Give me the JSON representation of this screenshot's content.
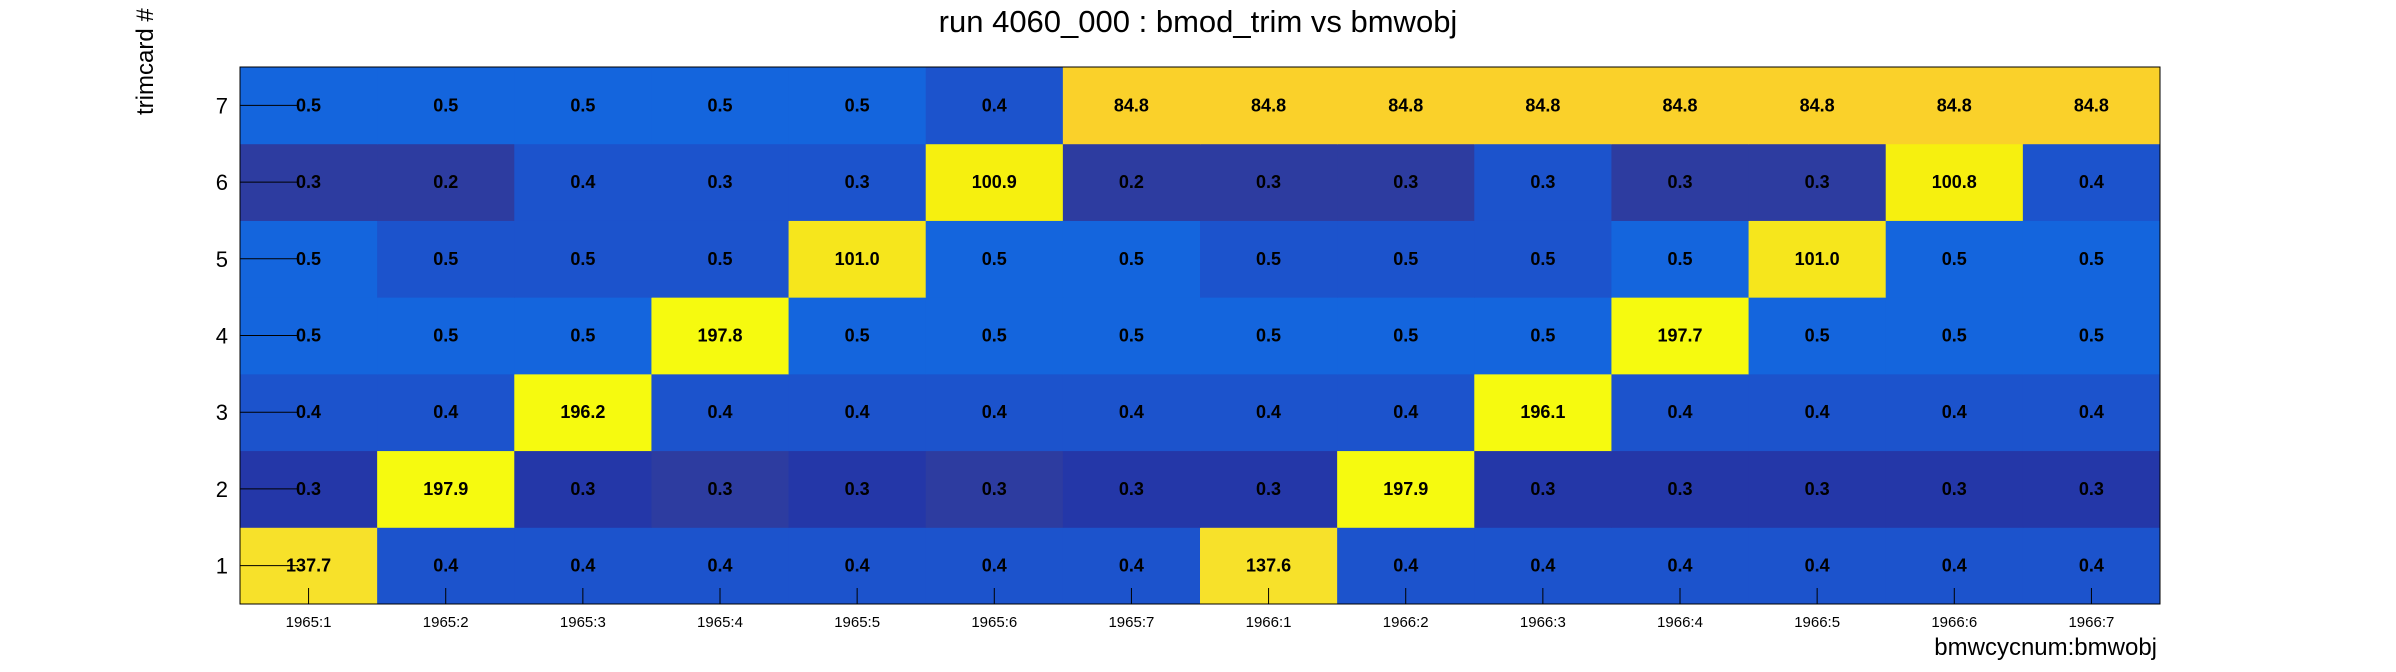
{
  "chart_data": {
    "type": "heatmap",
    "title": "run 4060_000 : bmod_trim vs bmwobj",
    "xlabel": "bmwcycnum:bmwobj",
    "ylabel": "trimcard #",
    "x_categories": [
      "1965:1",
      "1965:2",
      "1965:3",
      "1965:4",
      "1965:5",
      "1965:6",
      "1965:7",
      "1966:1",
      "1966:2",
      "1966:3",
      "1966:4",
      "1966:5",
      "1966:6",
      "1966:7"
    ],
    "y_categories": [
      "1",
      "2",
      "3",
      "4",
      "5",
      "6",
      "7"
    ],
    "values": [
      [
        "137.7",
        "0.4",
        "0.4",
        "0.4",
        "0.4",
        "0.4",
        "0.4",
        "137.6",
        "0.4",
        "0.4",
        "0.4",
        "0.4",
        "0.4",
        "0.4"
      ],
      [
        "0.3",
        "197.9",
        "0.3",
        "0.3",
        "0.3",
        "0.3",
        "0.3",
        "0.3",
        "197.9",
        "0.3",
        "0.3",
        "0.3",
        "0.3",
        "0.3"
      ],
      [
        "0.4",
        "0.4",
        "196.2",
        "0.4",
        "0.4",
        "0.4",
        "0.4",
        "0.4",
        "0.4",
        "196.1",
        "0.4",
        "0.4",
        "0.4",
        "0.4"
      ],
      [
        "0.5",
        "0.5",
        "0.5",
        "197.8",
        "0.5",
        "0.5",
        "0.5",
        "0.5",
        "0.5",
        "0.5",
        "197.7",
        "0.5",
        "0.5",
        "0.5"
      ],
      [
        "0.5",
        "0.5",
        "0.5",
        "0.5",
        "101.0",
        "0.5",
        "0.5",
        "0.5",
        "0.5",
        "0.5",
        "0.5",
        "101.0",
        "0.5",
        "0.5"
      ],
      [
        "0.3",
        "0.2",
        "0.4",
        "0.3",
        "0.3",
        "100.9",
        "0.2",
        "0.3",
        "0.3",
        "0.3",
        "0.3",
        "0.3",
        "100.8",
        "0.4"
      ],
      [
        "0.5",
        "0.5",
        "0.5",
        "0.5",
        "0.5",
        "0.4",
        "84.8",
        "84.8",
        "84.8",
        "84.8",
        "84.8",
        "84.8",
        "84.8",
        "84.8"
      ]
    ],
    "colors": [
      [
        "#f7e12a",
        "#1c53cc",
        "#1c53cc",
        "#1c53cc",
        "#1c53cc",
        "#1c53cc",
        "#1c53cc",
        "#f7e12a",
        "#1c53cc",
        "#1c53cc",
        "#1c53cc",
        "#1c53cc",
        "#1c53cc",
        "#1c53cc"
      ],
      [
        "#2437a8",
        "#f6fa0f",
        "#2437a8",
        "#2d3ca0",
        "#2437a8",
        "#2d3ca0",
        "#2437a8",
        "#2437a8",
        "#f6fa0f",
        "#2437a8",
        "#2437a8",
        "#2437a8",
        "#2437a8",
        "#2437a8"
      ],
      [
        "#1c53cc",
        "#1c53cc",
        "#f6fa0f",
        "#1c53cc",
        "#1c53cc",
        "#1c53cc",
        "#1c53cc",
        "#1c53cc",
        "#1c53cc",
        "#f6fa0f",
        "#1c53cc",
        "#1c53cc",
        "#1c53cc",
        "#1c53cc"
      ],
      [
        "#1465dd",
        "#1465dd",
        "#1465dd",
        "#f6fa0f",
        "#1465dd",
        "#1465dd",
        "#1465dd",
        "#1465dd",
        "#1465dd",
        "#1465dd",
        "#f6fa0f",
        "#1465dd",
        "#1465dd",
        "#1465dd"
      ],
      [
        "#1465dd",
        "#1c53cc",
        "#1c53cc",
        "#1c53cc",
        "#f6e61c",
        "#1465dd",
        "#1465dd",
        "#1c53cc",
        "#1c53cc",
        "#1c53cc",
        "#1465dd",
        "#f6e61c",
        "#1465dd",
        "#1465dd"
      ],
      [
        "#2d3ca0",
        "#2d3ca0",
        "#1c53cc",
        "#1c53cc",
        "#1c53cc",
        "#f6f00f",
        "#2d3ca0",
        "#2d3ca0",
        "#2d3ca0",
        "#1c53cc",
        "#2d3ca0",
        "#2d3ca0",
        "#f6f00f",
        "#1c53cc"
      ],
      [
        "#1465dd",
        "#1465dd",
        "#1465dd",
        "#1465dd",
        "#1465dd",
        "#1c53cc",
        "#fad12a",
        "#fad12a",
        "#fad12a",
        "#fad12a",
        "#fad12a",
        "#fad12a",
        "#fad12a",
        "#fad12a"
      ]
    ],
    "grid": false,
    "legend": "none"
  }
}
